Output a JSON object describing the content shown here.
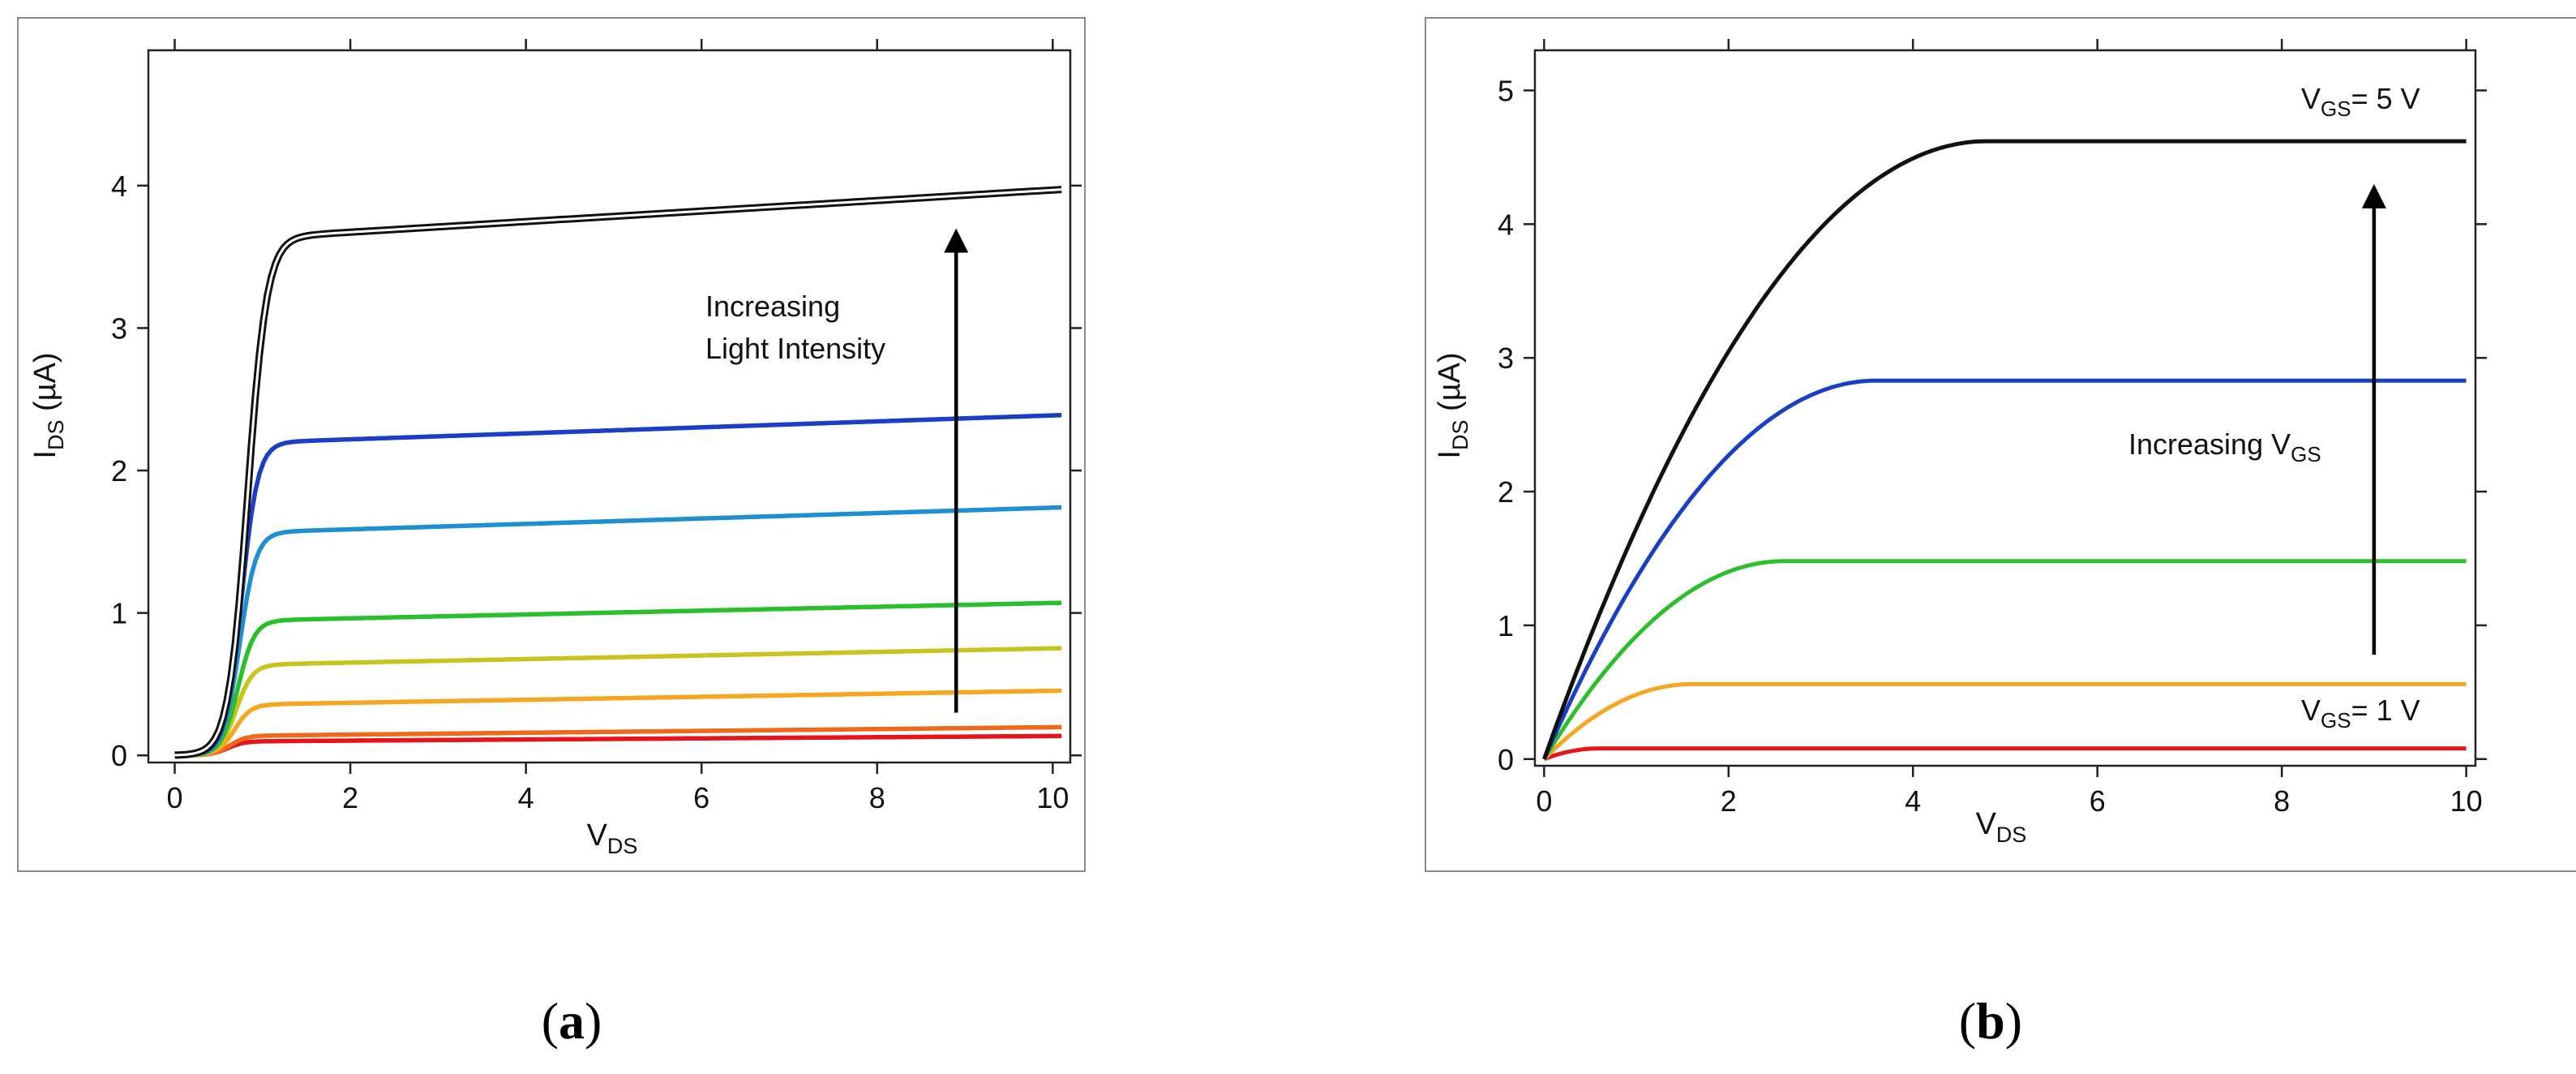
{
  "figure": {
    "panels": [
      {
        "label_open": "(",
        "label_letter": "a",
        "label_close": ")"
      },
      {
        "label_open": "(",
        "label_letter": "b",
        "label_close": ")"
      }
    ]
  },
  "chart_data": [
    {
      "type": "line",
      "panel": "a",
      "xlabel": {
        "main": "V",
        "sub": "DS"
      },
      "ylabel": {
        "main": "I",
        "sub": "DS",
        "unit": " (µA)"
      },
      "xlim": [
        -0.3,
        10.2
      ],
      "ylim": [
        -0.05,
        4.95
      ],
      "xticks": [
        0,
        2,
        4,
        6,
        8,
        10
      ],
      "yticks": [
        0,
        1,
        2,
        3,
        4
      ],
      "annotations": {
        "line1": "Increasing",
        "line2": "Light Intensity",
        "arrow": {
          "x": 8.9,
          "y_from": 0.3,
          "y_to": 3.7
        }
      },
      "series": [
        {
          "name": "curve-1",
          "color": "#e8141b",
          "sat": 0.1,
          "vt": 0.3,
          "w": 0.3,
          "slope": 0.004
        },
        {
          "name": "curve-2",
          "color": "#ee6a1a",
          "sat": 0.14,
          "vt": 0.33,
          "w": 0.3,
          "slope": 0.0065
        },
        {
          "name": "curve-3",
          "color": "#f5a623",
          "sat": 0.36,
          "vt": 0.38,
          "w": 0.3,
          "slope": 0.0105
        },
        {
          "name": "curve-4",
          "color": "#c8c41e",
          "sat": 0.64,
          "vt": 0.4,
          "w": 0.3,
          "slope": 0.0125
        },
        {
          "name": "curve-5",
          "color": "#2bbf2b",
          "sat": 0.95,
          "vt": 0.42,
          "w": 0.3,
          "slope": 0.0135
        },
        {
          "name": "curve-6",
          "color": "#1e8fcf",
          "sat": 1.57,
          "vt": 0.44,
          "w": 0.3,
          "slope": 0.019
        },
        {
          "name": "curve-7",
          "color": "#1a3fc4",
          "sat": 2.2,
          "vt": 0.46,
          "w": 0.3,
          "slope": 0.021
        },
        {
          "name": "curve-8",
          "color": "#111111",
          "sat": 3.64,
          "vt": 0.48,
          "w": 0.35,
          "slope": 0.037
        }
      ]
    },
    {
      "type": "line",
      "panel": "b",
      "xlabel": {
        "main": "V",
        "sub": "DS"
      },
      "ylabel": {
        "main": "I",
        "sub": "DS",
        "unit": " (µA)"
      },
      "xlim": [
        -0.1,
        10.1
      ],
      "ylim": [
        -0.05,
        5.3
      ],
      "xticks": [
        0,
        2,
        4,
        6,
        8,
        10
      ],
      "yticks": [
        0,
        1,
        2,
        3,
        4,
        5
      ],
      "annotations": {
        "mid": {
          "main": "Increasing V",
          "sub": "GS",
          "unit": ""
        },
        "top": {
          "main": "V",
          "sub": "GS",
          "unit": "= 5 V"
        },
        "bottom": {
          "main": "V",
          "sub": "GS",
          "unit": "= 1 V"
        },
        "arrow": {
          "x": 9.0,
          "y_from": 0.78,
          "y_to": 4.3
        }
      },
      "series": [
        {
          "name": "vgs-1",
          "color": "#e8141b",
          "isat": 0.08,
          "vdsat": 0.6
        },
        {
          "name": "vgs-2",
          "color": "#f5a623",
          "isat": 0.56,
          "vdsat": 1.6
        },
        {
          "name": "vgs-3",
          "color": "#2bbf2b",
          "isat": 1.48,
          "vdsat": 2.6
        },
        {
          "name": "vgs-4",
          "color": "#1a3fc4",
          "isat": 2.83,
          "vdsat": 3.6
        },
        {
          "name": "vgs-5",
          "color": "#111111",
          "isat": 4.62,
          "vdsat": 4.8
        }
      ]
    }
  ]
}
